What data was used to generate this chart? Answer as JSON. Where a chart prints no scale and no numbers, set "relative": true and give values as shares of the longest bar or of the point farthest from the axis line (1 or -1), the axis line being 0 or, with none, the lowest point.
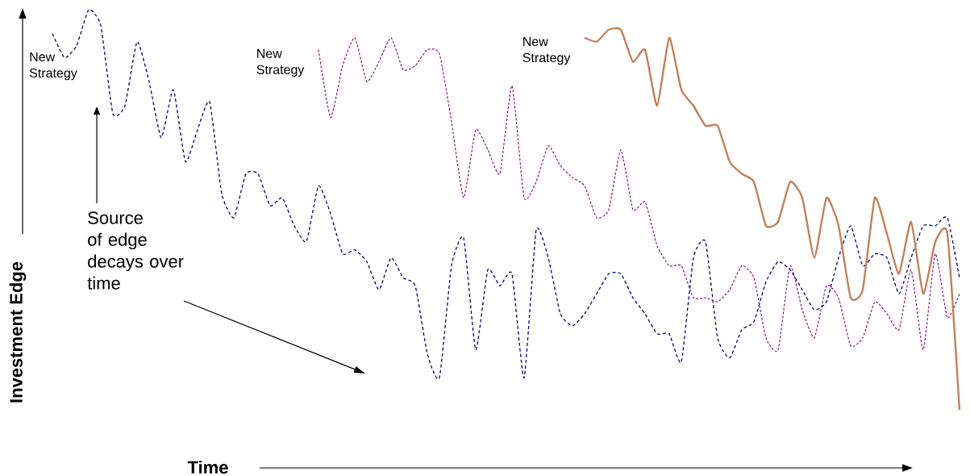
{
  "chart_data": {
    "type": "line",
    "relative": true,
    "xlabel": "Time",
    "ylabel": "Investment Edge",
    "categories": [
      null,
      null,
      null,
      null,
      null,
      null,
      null,
      null,
      null,
      null,
      null,
      null,
      null,
      null,
      null,
      null,
      null,
      null,
      null,
      null,
      null,
      null,
      null,
      null,
      null,
      null,
      null,
      null,
      null,
      null,
      null,
      null,
      null,
      null,
      null,
      null,
      null,
      null,
      null,
      null,
      null,
      null,
      null,
      null,
      null,
      null,
      null,
      null,
      null,
      null,
      null,
      null,
      null,
      null,
      null,
      null,
      null,
      null,
      null,
      null,
      null,
      null,
      null,
      null,
      null,
      null,
      null,
      null,
      null,
      null,
      null,
      null,
      null,
      null,
      null,
      null
    ],
    "series": [
      {
        "color": "#000080",
        "line_style": "dashed",
        "values": [
          0.94,
          0.88,
          0.91,
          1.0,
          0.96,
          0.74,
          0.76,
          0.92,
          0.82,
          0.68,
          0.8,
          0.62,
          0.7,
          0.77,
          0.54,
          0.48,
          0.59,
          0.59,
          0.51,
          0.53,
          0.46,
          0.42,
          0.56,
          0.49,
          0.39,
          0.4,
          0.37,
          0.3,
          0.38,
          0.33,
          0.31,
          0.14,
          0.08,
          0.36,
          0.43,
          0.15,
          0.35,
          0.31,
          0.34,
          0.08,
          0.45,
          0.38,
          0.24,
          0.21,
          0.24,
          0.29,
          0.34,
          0.34,
          0.28,
          0.24,
          0.19,
          0.19,
          0.12,
          0.38,
          0.42,
          0.18,
          0.13,
          0.2,
          0.22,
          0.32,
          0.37,
          0.35,
          0.3,
          0.25,
          0.27,
          0.38,
          0.46,
          0.36,
          0.39,
          0.38,
          0.29,
          0.38,
          0.46,
          0.46,
          0.48,
          0.33
        ]
      },
      {
        "color": "#800080",
        "line_style": "dashed",
        "values": [
          null,
          null,
          null,
          null,
          null,
          null,
          null,
          null,
          null,
          null,
          null,
          null,
          null,
          null,
          null,
          null,
          null,
          null,
          null,
          null,
          null,
          null,
          0.9,
          0.73,
          0.86,
          0.93,
          0.82,
          0.87,
          0.93,
          0.85,
          0.86,
          0.9,
          0.89,
          0.72,
          0.53,
          0.7,
          0.65,
          0.59,
          0.81,
          0.53,
          0.57,
          0.66,
          0.61,
          0.58,
          0.56,
          0.48,
          0.5,
          0.65,
          0.5,
          0.52,
          0.41,
          0.36,
          0.36,
          0.28,
          0.28,
          0.27,
          0.3,
          0.36,
          0.33,
          0.18,
          0.15,
          0.36,
          0.25,
          0.18,
          0.31,
          0.28,
          0.16,
          0.18,
          0.27,
          0.24,
          0.2,
          0.35,
          0.15,
          0.39,
          0.23,
          0.29
        ]
      },
      {
        "color": "#c0805a",
        "line_style": "solid",
        "values": [
          null,
          null,
          null,
          null,
          null,
          null,
          null,
          null,
          null,
          null,
          null,
          null,
          null,
          null,
          null,
          null,
          null,
          null,
          null,
          null,
          null,
          null,
          null,
          null,
          null,
          null,
          null,
          null,
          null,
          null,
          null,
          null,
          null,
          null,
          null,
          null,
          null,
          null,
          null,
          null,
          null,
          null,
          null,
          null,
          0.93,
          0.92,
          0.95,
          0.95,
          0.87,
          0.9,
          0.76,
          0.93,
          0.8,
          0.76,
          0.71,
          0.71,
          0.62,
          0.59,
          0.57,
          0.46,
          0.47,
          0.57,
          0.53,
          0.38,
          0.53,
          0.46,
          0.28,
          0.3,
          0.53,
          0.44,
          0.34,
          0.47,
          0.29,
          0.42,
          0.44,
          0.0
        ]
      }
    ],
    "annotations": [
      "New Strategy",
      "New Strategy",
      "New Strategy",
      "Source of edge decays over time"
    ]
  }
}
